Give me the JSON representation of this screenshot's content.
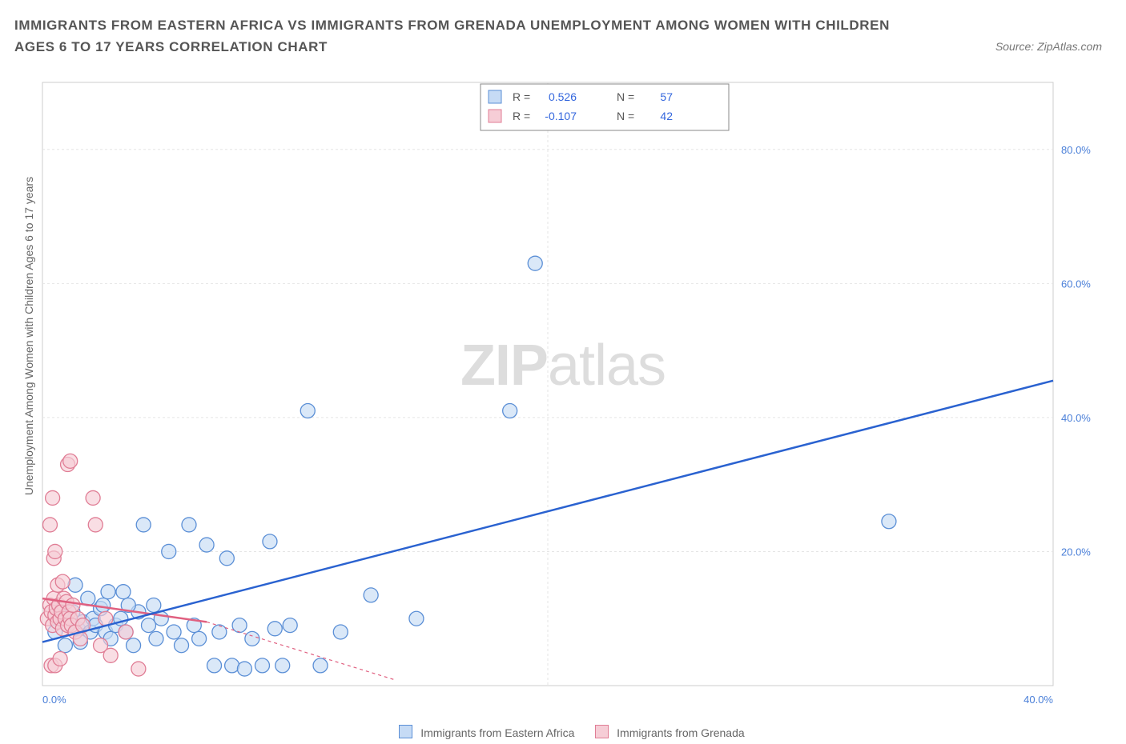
{
  "title": "IMMIGRANTS FROM EASTERN AFRICA VS IMMIGRANTS FROM GRENADA UNEMPLOYMENT AMONG WOMEN WITH CHILDREN AGES 6 TO 17 YEARS CORRELATION CHART",
  "source": "Source: ZipAtlas.com",
  "ylabel": "Unemployment Among Women with Children Ages 6 to 17 years",
  "watermark": {
    "part1": "ZIP",
    "part2": "atlas"
  },
  "chart": {
    "type": "scatter-with-regression",
    "background_color": "#ffffff",
    "plot_border_color": "#cccccc",
    "grid_color": "#e5e5e5",
    "grid_dash": "3,3",
    "xlim": [
      0,
      40
    ],
    "ylim": [
      0,
      90
    ],
    "x_ticks": [
      0,
      40
    ],
    "x_tick_labels": [
      "0.0%",
      "40.0%"
    ],
    "x_tick_color": "#4a7fd8",
    "y_ticks": [
      20,
      40,
      60,
      80
    ],
    "y_tick_labels": [
      "20.0%",
      "40.0%",
      "60.0%",
      "80.0%"
    ],
    "y_tick_color": "#4a7fd8",
    "axis_label_fontsize": 13,
    "tick_fontsize": 13
  },
  "stats_box": {
    "border_color": "#888888",
    "bg_color": "#ffffff",
    "label_color": "#555555",
    "value_color": "#3366dd",
    "fontsize": 14,
    "rows": [
      {
        "swatch_fill": "#c6dbf5",
        "swatch_stroke": "#5b8fd6",
        "r_label": "R =",
        "r": "0.526",
        "n_label": "N =",
        "n": "57"
      },
      {
        "swatch_fill": "#f6cdd6",
        "swatch_stroke": "#e07d95",
        "r_label": "R =",
        "r": "-0.107",
        "n_label": "N =",
        "n": "42"
      }
    ]
  },
  "bottom_legend": [
    {
      "swatch_fill": "#c6dbf5",
      "swatch_stroke": "#5b8fd6",
      "label": "Immigrants from Eastern Africa"
    },
    {
      "swatch_fill": "#f6cdd6",
      "swatch_stroke": "#e07d95",
      "label": "Immigrants from Grenada"
    }
  ],
  "series": [
    {
      "name": "Immigrants from Eastern Africa",
      "color_fill": "#c6dbf5",
      "color_stroke": "#5b8fd6",
      "fill_opacity": 0.65,
      "marker_radius": 9,
      "regression": {
        "x1": 0,
        "y1": 6.5,
        "x2": 40,
        "y2": 45.5,
        "color": "#2a62d0",
        "width": 2.5,
        "dash": "none",
        "ci_lower": {
          "x1": 0,
          "y1": 3.0,
          "x2": 14,
          "y2": 1.0
        },
        "ci_color": "#2a62d0"
      },
      "points": [
        [
          0.5,
          8
        ],
        [
          0.8,
          10
        ],
        [
          1.0,
          9
        ],
        [
          1.2,
          11
        ],
        [
          1.4,
          8.5
        ],
        [
          1.6,
          9.5
        ],
        [
          1.9,
          8
        ],
        [
          2.0,
          10
        ],
        [
          2.1,
          9
        ],
        [
          2.3,
          11.5
        ],
        [
          2.5,
          8
        ],
        [
          2.7,
          7
        ],
        [
          2.9,
          9
        ],
        [
          3.1,
          10
        ],
        [
          3.3,
          8
        ],
        [
          3.6,
          6
        ],
        [
          3.8,
          11
        ],
        [
          4.0,
          24
        ],
        [
          4.2,
          9
        ],
        [
          4.5,
          7
        ],
        [
          4.7,
          10
        ],
        [
          5.0,
          20
        ],
        [
          5.2,
          8
        ],
        [
          5.5,
          6
        ],
        [
          5.8,
          24
        ],
        [
          6.0,
          9
        ],
        [
          6.2,
          7
        ],
        [
          6.5,
          21
        ],
        [
          6.8,
          3
        ],
        [
          7.0,
          8
        ],
        [
          7.3,
          19
        ],
        [
          7.5,
          3
        ],
        [
          7.8,
          9
        ],
        [
          8.0,
          2.5
        ],
        [
          8.3,
          7
        ],
        [
          8.7,
          3
        ],
        [
          9.0,
          21.5
        ],
        [
          9.2,
          8.5
        ],
        [
          9.5,
          3
        ],
        [
          9.8,
          9
        ],
        [
          10.5,
          41
        ],
        [
          11.0,
          3
        ],
        [
          11.8,
          8
        ],
        [
          13.0,
          13.5
        ],
        [
          14.8,
          10
        ],
        [
          18.5,
          41
        ],
        [
          19.5,
          63
        ],
        [
          33.5,
          24.5
        ],
        [
          1.3,
          15
        ],
        [
          1.8,
          13
        ],
        [
          2.4,
          12
        ],
        [
          3.4,
          12
        ],
        [
          4.4,
          12
        ],
        [
          2.6,
          14
        ],
        [
          3.2,
          14
        ],
        [
          0.9,
          6
        ],
        [
          1.5,
          6.5
        ]
      ]
    },
    {
      "name": "Immigrants from Grenada",
      "color_fill": "#f6cdd6",
      "color_stroke": "#e07d95",
      "fill_opacity": 0.65,
      "marker_radius": 9,
      "regression": {
        "x1": 0,
        "y1": 13.0,
        "x2": 6.5,
        "y2": 9.5,
        "color": "#e06080",
        "width": 2.5,
        "dash": "none",
        "ci_extend": {
          "x1": 6.5,
          "y1": 9.5,
          "x2": 14,
          "y2": 0.8,
          "dash": "4,4"
        }
      },
      "points": [
        [
          0.2,
          10
        ],
        [
          0.3,
          12
        ],
        [
          0.35,
          11
        ],
        [
          0.4,
          9
        ],
        [
          0.45,
          13
        ],
        [
          0.5,
          10.5
        ],
        [
          0.55,
          11.5
        ],
        [
          0.6,
          9.5
        ],
        [
          0.65,
          12
        ],
        [
          0.7,
          10
        ],
        [
          0.75,
          11
        ],
        [
          0.8,
          8.5
        ],
        [
          0.85,
          13
        ],
        [
          0.9,
          10
        ],
        [
          0.95,
          12.5
        ],
        [
          1.0,
          9
        ],
        [
          1.05,
          11
        ],
        [
          1.1,
          10
        ],
        [
          1.15,
          9
        ],
        [
          1.2,
          12
        ],
        [
          1.3,
          8
        ],
        [
          1.4,
          10
        ],
        [
          1.5,
          7
        ],
        [
          1.6,
          9
        ],
        [
          1.0,
          33
        ],
        [
          1.1,
          33.5
        ],
        [
          0.3,
          24
        ],
        [
          0.4,
          28
        ],
        [
          0.45,
          19
        ],
        [
          0.5,
          20
        ],
        [
          0.35,
          3
        ],
        [
          0.5,
          3
        ],
        [
          0.7,
          4
        ],
        [
          2.0,
          28
        ],
        [
          2.1,
          24
        ],
        [
          2.3,
          6
        ],
        [
          2.5,
          10
        ],
        [
          2.7,
          4.5
        ],
        [
          3.3,
          8
        ],
        [
          3.8,
          2.5
        ],
        [
          0.6,
          15
        ],
        [
          0.8,
          15.5
        ]
      ]
    }
  ]
}
